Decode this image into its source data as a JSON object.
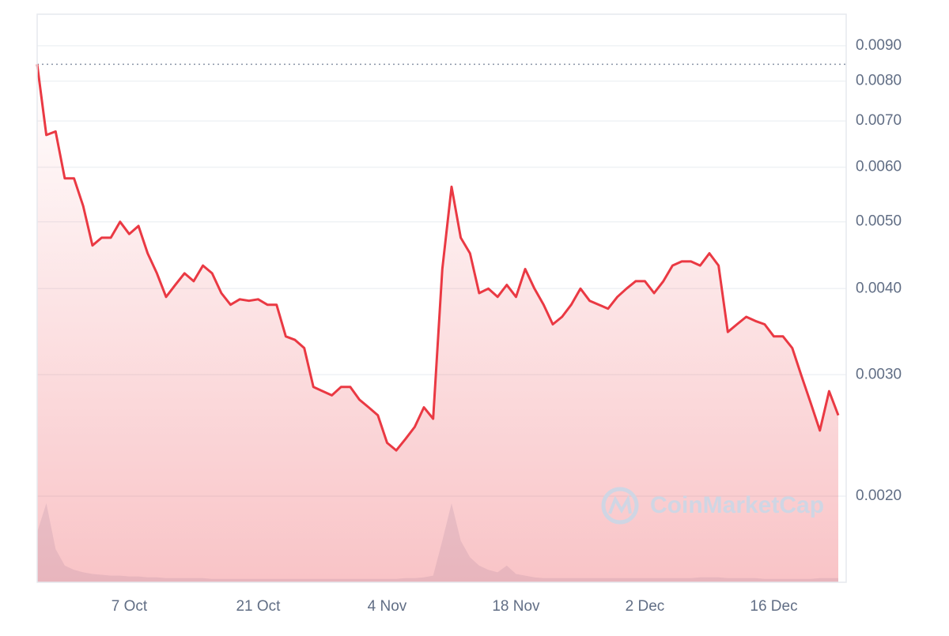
{
  "chart_data": {
    "type": "line",
    "watermark": "CoinMarketCap",
    "x": [
      "27 Sep",
      "28 Sep",
      "29 Sep",
      "30 Sep",
      "1 Oct",
      "2 Oct",
      "3 Oct",
      "4 Oct",
      "5 Oct",
      "6 Oct",
      "7 Oct",
      "8 Oct",
      "9 Oct",
      "10 Oct",
      "11 Oct",
      "12 Oct",
      "13 Oct",
      "14 Oct",
      "15 Oct",
      "16 Oct",
      "17 Oct",
      "18 Oct",
      "19 Oct",
      "20 Oct",
      "21 Oct",
      "22 Oct",
      "23 Oct",
      "24 Oct",
      "25 Oct",
      "26 Oct",
      "27 Oct",
      "28 Oct",
      "29 Oct",
      "30 Oct",
      "31 Oct",
      "1 Nov",
      "2 Nov",
      "3 Nov",
      "4 Nov",
      "5 Nov",
      "6 Nov",
      "7 Nov",
      "8 Nov",
      "9 Nov",
      "10 Nov",
      "11 Nov",
      "12 Nov",
      "13 Nov",
      "14 Nov",
      "15 Nov",
      "16 Nov",
      "17 Nov",
      "18 Nov",
      "19 Nov",
      "20 Nov",
      "21 Nov",
      "22 Nov",
      "23 Nov",
      "24 Nov",
      "25 Nov",
      "26 Nov",
      "27 Nov",
      "28 Nov",
      "29 Nov",
      "30 Nov",
      "1 Dec",
      "2 Dec",
      "3 Dec",
      "4 Dec",
      "5 Dec",
      "6 Dec",
      "7 Dec",
      "8 Dec",
      "9 Dec",
      "10 Dec",
      "11 Dec",
      "12 Dec",
      "13 Dec",
      "14 Dec",
      "15 Dec",
      "16 Dec",
      "17 Dec",
      "18 Dec",
      "19 Dec",
      "20 Dec",
      "21 Dec",
      "22 Dec",
      "23 Dec"
    ],
    "xticks": [
      "7 Oct",
      "21 Oct",
      "4 Nov",
      "18 Nov",
      "2 Dec",
      "16 Dec"
    ],
    "series": [
      {
        "color": "#ea3943",
        "values": [
          0.00846,
          0.00668,
          0.00676,
          0.00578,
          0.00578,
          0.00527,
          0.00462,
          0.00474,
          0.00474,
          0.005,
          0.0048,
          0.00493,
          0.0045,
          0.00421,
          0.00389,
          0.00405,
          0.00421,
          0.0041,
          0.00432,
          0.00421,
          0.00394,
          0.00379,
          0.00386,
          0.00384,
          0.00386,
          0.00379,
          0.00379,
          0.00341,
          0.00337,
          0.00328,
          0.00288,
          0.00284,
          0.0028,
          0.00288,
          0.00288,
          0.00276,
          0.00269,
          0.00262,
          0.00239,
          0.00233,
          0.00242,
          0.00252,
          0.00269,
          0.00259,
          0.00427,
          0.00562,
          0.00474,
          0.0045,
          0.00394,
          0.004,
          0.00389,
          0.00405,
          0.00389,
          0.00427,
          0.004,
          0.00379,
          0.00355,
          0.00364,
          0.00379,
          0.004,
          0.00384,
          0.00379,
          0.00374,
          0.00389,
          0.004,
          0.0041,
          0.0041,
          0.00394,
          0.0041,
          0.00432,
          0.00438,
          0.00438,
          0.00432,
          0.0045,
          0.00432,
          0.00346,
          0.00355,
          0.00364,
          0.00359,
          0.00355,
          0.00341,
          0.00341,
          0.00328,
          0.00299,
          0.00273,
          0.00249,
          0.00284,
          0.00262
        ]
      }
    ],
    "volume": [
      60,
      95,
      40,
      20,
      15,
      12,
      10,
      9,
      8,
      8,
      7,
      7,
      6,
      6,
      5,
      5,
      5,
      5,
      5,
      4,
      4,
      4,
      4,
      4,
      4,
      4,
      4,
      4,
      4,
      4,
      4,
      4,
      4,
      4,
      4,
      4,
      4,
      4,
      4,
      4,
      5,
      5,
      6,
      8,
      50,
      95,
      50,
      30,
      20,
      15,
      12,
      20,
      10,
      8,
      6,
      5,
      5,
      5,
      5,
      5,
      5,
      5,
      5,
      5,
      5,
      5,
      5,
      5,
      5,
      5,
      5,
      5,
      6,
      6,
      6,
      5,
      5,
      5,
      5,
      4,
      4,
      4,
      4,
      4,
      4,
      5,
      5,
      5
    ],
    "volume_color": "#cfd6e4",
    "log_y": true,
    "ylim": [
      0.0015,
      0.01
    ],
    "yticks": [
      {
        "value": 0.002,
        "label": "0.0020"
      },
      {
        "value": 0.003,
        "label": "0.0030"
      },
      {
        "value": 0.004,
        "label": "0.0040"
      },
      {
        "value": 0.005,
        "label": "0.0050"
      },
      {
        "value": 0.006,
        "label": "0.0060"
      },
      {
        "value": 0.007,
        "label": "0.0070"
      },
      {
        "value": 0.008,
        "label": "0.0080"
      },
      {
        "value": 0.009,
        "label": "0.0090"
      }
    ],
    "grid": true
  }
}
